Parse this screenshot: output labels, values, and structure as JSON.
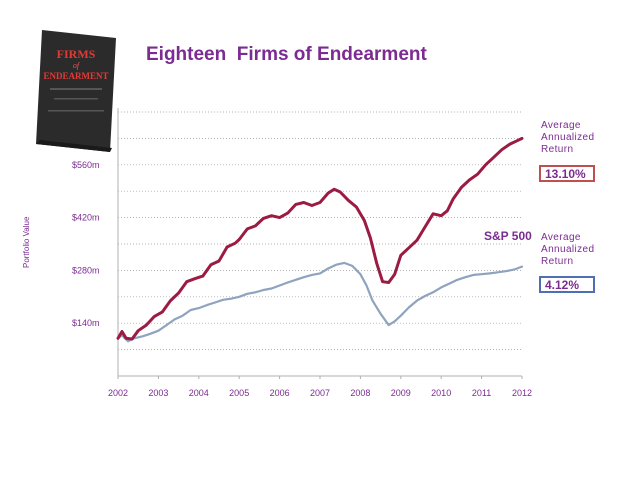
{
  "header": {
    "title": "Eighteen  Firms of Endearment"
  },
  "book": {
    "title_line1": "FIRMS",
    "title_line2": "of",
    "title_line3": "ENDEARMENT",
    "colors": {
      "cover": "#2b2b2b",
      "accent": "#c62828"
    }
  },
  "annotations": {
    "foe": {
      "lines": [
        "Average",
        "Annualized",
        "Return"
      ],
      "value": "13.10%"
    },
    "sp": {
      "lines": [
        "Average",
        "Annualized",
        "Return"
      ],
      "value": "4.12%"
    },
    "sp_series_label": "S&P 500"
  },
  "colors": {
    "foe": "#9b1b42",
    "sp": "#8ea3be",
    "text": "#7b2b91"
  },
  "chart_data": {
    "type": "line",
    "ylabel": "Portfolio Value",
    "x_ticks": [
      "2002",
      "2003",
      "2004",
      "2005",
      "2006",
      "2007",
      "2008",
      "2009",
      "2010",
      "2011",
      "2012"
    ],
    "y_ticks": [
      {
        "value": 140,
        "label": "$140m"
      },
      {
        "value": 280,
        "label": "$280m"
      },
      {
        "value": 420,
        "label": "$420m"
      },
      {
        "value": 560,
        "label": "$560m"
      }
    ],
    "xlim": [
      2002,
      2012
    ],
    "ylim": [
      0,
      700
    ],
    "grid": true,
    "series": [
      {
        "name": "Firms of Endearment",
        "color": "#9b1b42",
        "x": [
          2002.0,
          2002.1,
          2002.2,
          2002.35,
          2002.5,
          2002.7,
          2002.9,
          2003.1,
          2003.3,
          2003.5,
          2003.7,
          2003.9,
          2004.1,
          2004.3,
          2004.5,
          2004.7,
          2004.9,
          2005.0,
          2005.2,
          2005.4,
          2005.6,
          2005.8,
          2006.0,
          2006.2,
          2006.4,
          2006.6,
          2006.8,
          2007.0,
          2007.2,
          2007.35,
          2007.5,
          2007.7,
          2007.9,
          2008.1,
          2008.25,
          2008.4,
          2008.55,
          2008.7,
          2008.85,
          2009.0,
          2009.2,
          2009.4,
          2009.6,
          2009.8,
          2010.0,
          2010.15,
          2010.3,
          2010.5,
          2010.7,
          2010.9,
          2011.1,
          2011.3,
          2011.5,
          2011.7,
          2011.9,
          2012.0
        ],
        "y": [
          100,
          118,
          100,
          98,
          120,
          135,
          158,
          170,
          200,
          220,
          250,
          258,
          265,
          295,
          305,
          342,
          352,
          362,
          390,
          398,
          418,
          425,
          420,
          432,
          455,
          460,
          452,
          460,
          485,
          495,
          488,
          466,
          448,
          412,
          365,
          300,
          250,
          248,
          270,
          320,
          340,
          360,
          395,
          430,
          425,
          438,
          470,
          500,
          520,
          535,
          560,
          580,
          600,
          615,
          625,
          630
        ]
      },
      {
        "name": "S&P 500",
        "color": "#8ea3be",
        "x": [
          2002.0,
          2002.1,
          2002.25,
          2002.4,
          2002.6,
          2002.8,
          2003.0,
          2003.2,
          2003.4,
          2003.6,
          2003.8,
          2004.0,
          2004.2,
          2004.4,
          2004.6,
          2004.8,
          2005.0,
          2005.2,
          2005.4,
          2005.6,
          2005.8,
          2006.0,
          2006.2,
          2006.4,
          2006.6,
          2006.8,
          2007.0,
          2007.2,
          2007.4,
          2007.6,
          2007.8,
          2008.0,
          2008.15,
          2008.3,
          2008.5,
          2008.7,
          2008.85,
          2009.0,
          2009.2,
          2009.4,
          2009.6,
          2009.8,
          2010.0,
          2010.2,
          2010.4,
          2010.6,
          2010.8,
          2011.0,
          2011.2,
          2011.4,
          2011.6,
          2011.8,
          2012.0
        ],
        "y": [
          100,
          108,
          92,
          100,
          105,
          112,
          120,
          135,
          150,
          160,
          175,
          180,
          188,
          195,
          202,
          205,
          210,
          218,
          222,
          228,
          232,
          240,
          248,
          255,
          262,
          268,
          272,
          285,
          295,
          300,
          292,
          270,
          240,
          200,
          165,
          135,
          145,
          160,
          182,
          200,
          212,
          222,
          235,
          245,
          255,
          262,
          268,
          270,
          272,
          275,
          278,
          282,
          290
        ]
      }
    ]
  }
}
